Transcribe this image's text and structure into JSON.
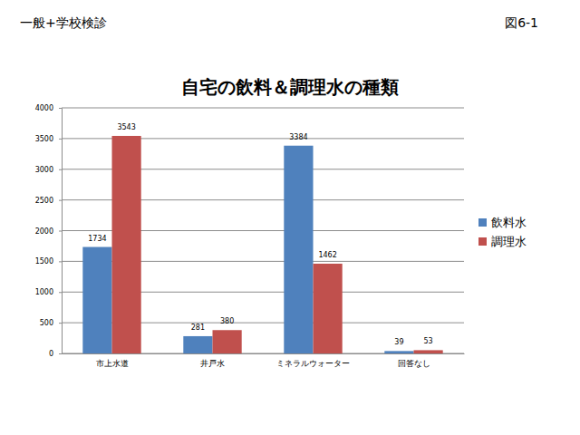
{
  "chart_data": {
    "type": "bar",
    "title": "自宅の飲料＆調理水の種類",
    "annotations": [
      "一般+学校検診",
      "図6-1"
    ],
    "categories": [
      "市上水道",
      "井戸水",
      "ミネラルウォーター",
      "回答なし"
    ],
    "series": [
      {
        "name": "飲料水",
        "color": "#4f81bd",
        "values": [
          1734,
          281,
          3384,
          39
        ]
      },
      {
        "name": "調理水",
        "color": "#c0504d",
        "values": [
          3543,
          380,
          1462,
          53
        ]
      }
    ],
    "ylim": [
      0,
      4000
    ],
    "yticks": [
      0,
      500,
      1000,
      1500,
      2000,
      2500,
      3000,
      3500,
      4000
    ],
    "grid": true,
    "legend": "right",
    "data_labels": true
  }
}
